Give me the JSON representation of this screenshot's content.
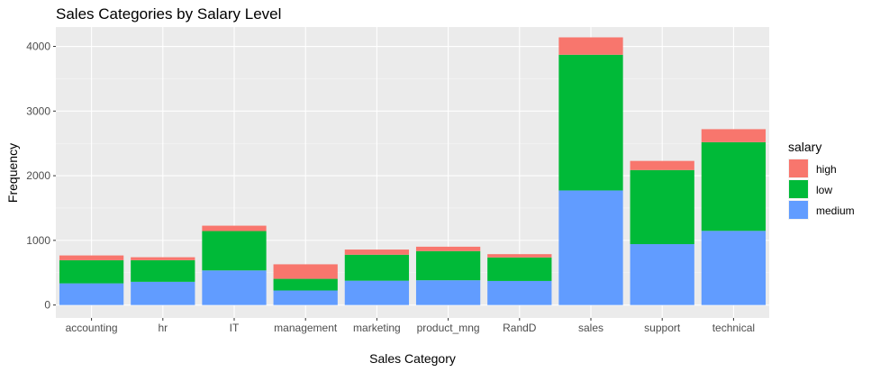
{
  "chart_data": {
    "type": "bar",
    "stacked": true,
    "title": "Sales Categories by Salary Level",
    "xlabel": "Sales Category",
    "ylabel": "Frequency",
    "ylim": [
      -200,
      4300
    ],
    "yticks": [
      0,
      1000,
      2000,
      3000,
      4000
    ],
    "categories": [
      "accounting",
      "hr",
      "IT",
      "management",
      "marketing",
      "product_mng",
      "RandD",
      "sales",
      "support",
      "technical"
    ],
    "series": [
      {
        "name": "medium",
        "color": "#619CFF",
        "values": [
          335,
          359,
          535,
          225,
          376,
          383,
          372,
          1772,
          942,
          1147
        ]
      },
      {
        "name": "low",
        "color": "#00BA38",
        "values": [
          358,
          335,
          609,
          180,
          402,
          451,
          364,
          2099,
          1146,
          1372
        ]
      },
      {
        "name": "high",
        "color": "#F8766D",
        "values": [
          74,
          45,
          83,
          225,
          80,
          68,
          51,
          269,
          141,
          201
        ]
      }
    ],
    "legend": {
      "title": "salary",
      "entries": [
        "high",
        "low",
        "medium"
      ],
      "placement": "right"
    },
    "grid": true,
    "panel_background": "#EBEBEB"
  }
}
